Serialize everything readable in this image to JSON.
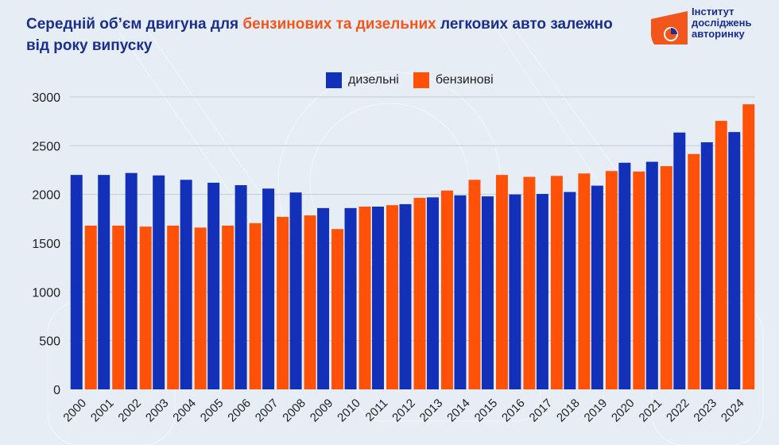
{
  "header": {
    "title_part1": "Середній об’єм двигуна для ",
    "title_highlight": "бензинових та дизельних",
    "title_part2": " легкових авто залежно",
    "title_line2": "від року випуску"
  },
  "logo": {
    "icon": "pie-chart-logo-icon",
    "lines": [
      "Інститут",
      "досліджень",
      "авторинку"
    ],
    "colors": {
      "shape": "#f2561d",
      "text": "#1a2f8c"
    }
  },
  "legend": [
    {
      "label": "дизельні",
      "color": "#1230b8"
    },
    {
      "label": "бензинові",
      "color": "#ff5208"
    }
  ],
  "chart_data": {
    "type": "bar",
    "title": "Середній об’єм двигуна для бензинових та дизельних легкових авто залежно від року випуску",
    "xlabel": "",
    "ylabel": "",
    "ylim": [
      0,
      3000
    ],
    "yticks": [
      0,
      500,
      1000,
      1500,
      2000,
      2500,
      3000
    ],
    "grid": true,
    "legend_position": "top-center",
    "categories": [
      "2000",
      "2001",
      "2002",
      "2003",
      "2004",
      "2005",
      "2006",
      "2007",
      "2008",
      "2009",
      "2010",
      "2011",
      "2012",
      "2013",
      "2014",
      "2015",
      "2016",
      "2017",
      "2018",
      "2019",
      "2020",
      "2021",
      "2022",
      "2023",
      "2024"
    ],
    "series": [
      {
        "name": "дизельні",
        "color": "#1230b8",
        "values": [
          2200,
          2200,
          2220,
          2195,
          2150,
          2120,
          2095,
          2060,
          2020,
          1860,
          1860,
          1875,
          1900,
          1970,
          1990,
          1980,
          2000,
          2005,
          2025,
          2090,
          2325,
          2335,
          2635,
          2535,
          2640
        ]
      },
      {
        "name": "бензинові",
        "color": "#ff5208",
        "values": [
          1680,
          1680,
          1670,
          1680,
          1660,
          1680,
          1705,
          1770,
          1785,
          1645,
          1875,
          1890,
          1965,
          2040,
          2150,
          2200,
          2180,
          2190,
          2215,
          2240,
          2235,
          2290,
          2415,
          2755,
          2925
        ]
      }
    ]
  }
}
